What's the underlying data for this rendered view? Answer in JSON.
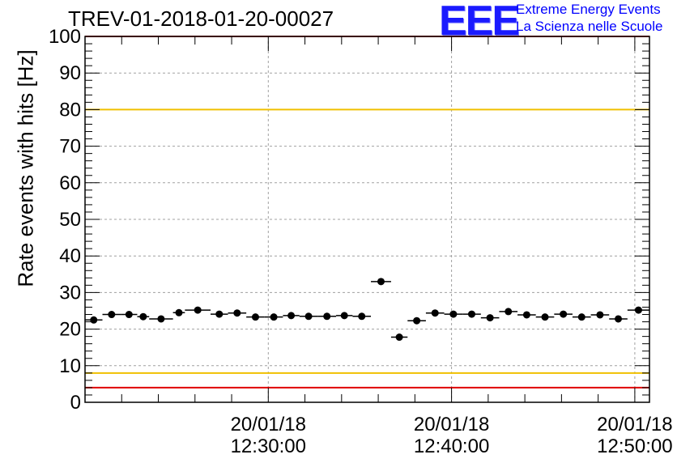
{
  "header": {
    "title": "TREV-01-2018-01-20-00027",
    "logo_mark": "EEE",
    "logo_line1": "Extreme Energy Events",
    "logo_line2": "La Scienza nelle Scuole"
  },
  "chart_data": {
    "type": "scatter",
    "title": "TREV-01-2018-01-20-00027",
    "ylabel": "Rate events with hits [Hz]",
    "xlabel": "",
    "ylim": [
      0,
      100
    ],
    "yticks": [
      0,
      10,
      20,
      30,
      40,
      50,
      60,
      70,
      80,
      90,
      100
    ],
    "x_unit": "minutes after 12:20:00",
    "xlim": [
      0,
      30.8
    ],
    "xticks": [
      {
        "x": 10,
        "date": "20/01/18",
        "time": "12:30:00"
      },
      {
        "x": 20,
        "date": "20/01/18",
        "time": "12:40:00"
      },
      {
        "x": 30,
        "date": "20/01/18",
        "time": "12:50:00"
      }
    ],
    "grid": true,
    "reference_lines": [
      {
        "y": 80,
        "color": "#f0c000"
      },
      {
        "y": 8,
        "color": "#f0c000"
      },
      {
        "y": 100,
        "color": "#e00000"
      },
      {
        "y": 4,
        "color": "#e00000"
      }
    ],
    "series": [
      {
        "marker_color": "#000000",
        "points": [
          {
            "x0": 0.0,
            "x1": 0.95,
            "y": 22.5
          },
          {
            "x0": 0.95,
            "x1": 1.95,
            "y": 24.0
          },
          {
            "x0": 1.95,
            "x1": 2.85,
            "y": 24.0
          },
          {
            "x0": 2.85,
            "x1": 3.5,
            "y": 23.4
          },
          {
            "x0": 3.5,
            "x1": 4.8,
            "y": 22.8
          },
          {
            "x0": 4.8,
            "x1": 5.45,
            "y": 24.5
          },
          {
            "x0": 5.45,
            "x1": 6.85,
            "y": 25.2
          },
          {
            "x0": 6.85,
            "x1": 7.8,
            "y": 24.1
          },
          {
            "x0": 7.8,
            "x1": 8.8,
            "y": 24.4
          },
          {
            "x0": 8.8,
            "x1": 9.8,
            "y": 23.3
          },
          {
            "x0": 9.8,
            "x1": 10.8,
            "y": 23.3
          },
          {
            "x0": 10.8,
            "x1": 11.7,
            "y": 23.7
          },
          {
            "x0": 11.7,
            "x1": 12.7,
            "y": 23.5
          },
          {
            "x0": 12.7,
            "x1": 13.7,
            "y": 23.5
          },
          {
            "x0": 13.7,
            "x1": 14.6,
            "y": 23.7
          },
          {
            "x0": 14.6,
            "x1": 15.6,
            "y": 23.5
          },
          {
            "x0": 15.6,
            "x1": 16.7,
            "y": 33.0
          },
          {
            "x0": 16.7,
            "x1": 17.6,
            "y": 17.8
          },
          {
            "x0": 17.6,
            "x1": 18.6,
            "y": 22.3
          },
          {
            "x0": 18.6,
            "x1": 19.6,
            "y": 24.4
          },
          {
            "x0": 19.6,
            "x1": 20.6,
            "y": 24.1
          },
          {
            "x0": 20.6,
            "x1": 21.6,
            "y": 24.1
          },
          {
            "x0": 21.6,
            "x1": 22.6,
            "y": 23.1
          },
          {
            "x0": 22.6,
            "x1": 23.6,
            "y": 24.8
          },
          {
            "x0": 23.6,
            "x1": 24.6,
            "y": 23.9
          },
          {
            "x0": 24.6,
            "x1": 25.6,
            "y": 23.3
          },
          {
            "x0": 25.6,
            "x1": 26.6,
            "y": 24.1
          },
          {
            "x0": 26.6,
            "x1": 27.6,
            "y": 23.3
          },
          {
            "x0": 27.6,
            "x1": 28.6,
            "y": 23.9
          },
          {
            "x0": 28.6,
            "x1": 29.6,
            "y": 22.8
          },
          {
            "x0": 29.6,
            "x1": 30.8,
            "y": 25.2
          }
        ]
      }
    ]
  }
}
